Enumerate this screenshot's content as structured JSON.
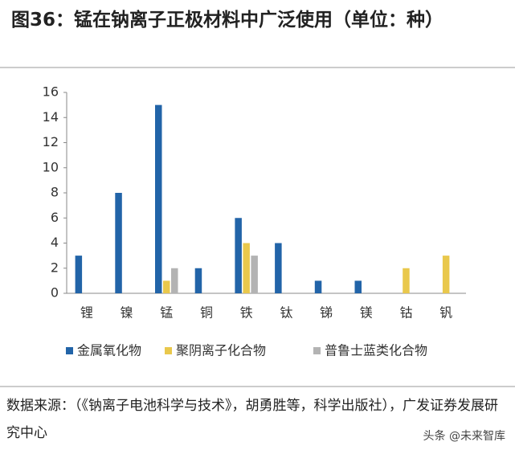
{
  "chart_data": {
    "type": "bar",
    "title": "图36：锰在钠离子正极材料中广泛使用（单位：种）",
    "categories": [
      "锂",
      "镍",
      "锰",
      "铜",
      "铁",
      "钛",
      "锑",
      "镁",
      "钴",
      "钒"
    ],
    "series": [
      {
        "name": "金属氧化物",
        "color": "#2264a8",
        "values": [
          3,
          8,
          15,
          2,
          6,
          4,
          1,
          1,
          0,
          0
        ]
      },
      {
        "name": "聚阴离子化合物",
        "color": "#e9c84c",
        "values": [
          0,
          0,
          1,
          0,
          4,
          0,
          0,
          0,
          2,
          3
        ]
      },
      {
        "name": "普鲁士蓝类化合物",
        "color": "#b3b3b3",
        "values": [
          0,
          0,
          2,
          0,
          3,
          0,
          0,
          0,
          0,
          0
        ]
      }
    ],
    "ylim": [
      0,
      16
    ],
    "yticks": [
      0,
      2,
      4,
      6,
      8,
      10,
      12,
      14,
      16
    ],
    "grid": false,
    "legend": "bottom",
    "source": "数据来源：（《钠离子电池科学与技术》，胡勇胜等，科学出版社），广发证券发展研究中心",
    "watermark": "头条 @未来智库"
  }
}
